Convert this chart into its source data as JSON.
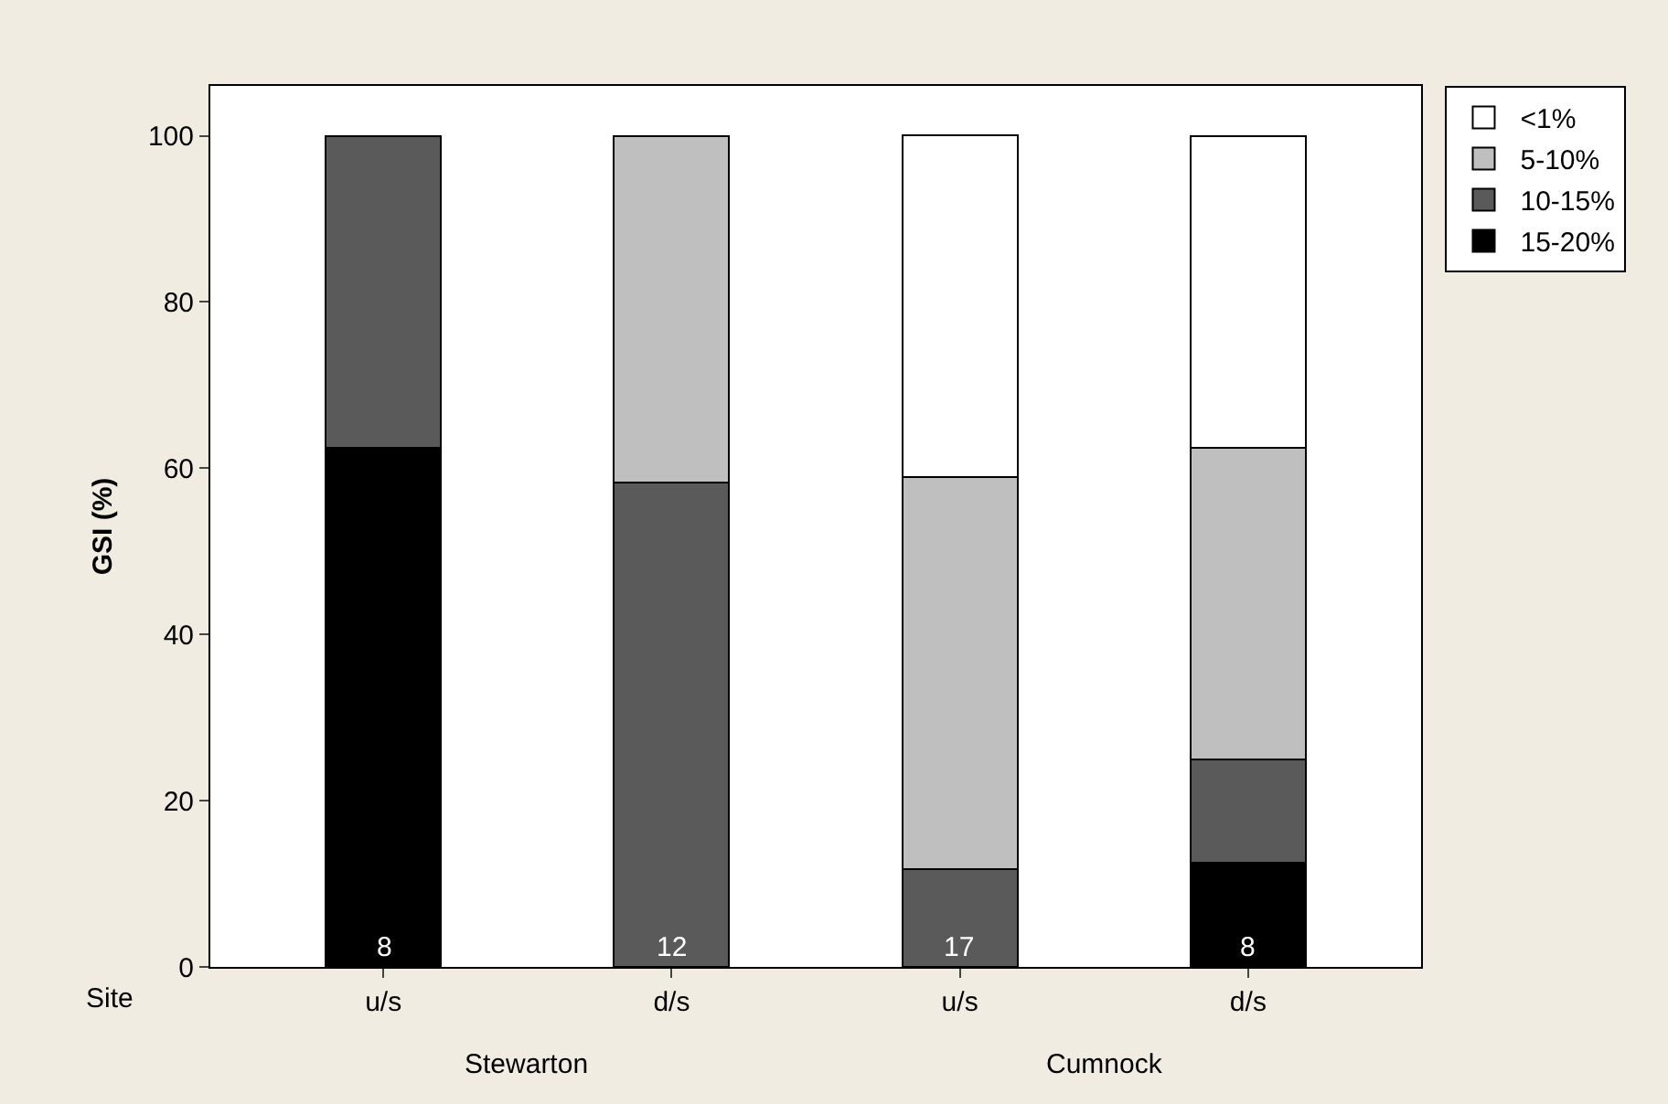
{
  "chart_data": {
    "type": "bar",
    "stacked": true,
    "ylabel": "GSI (%)",
    "xlabel": "Site",
    "categories": [
      "u/s",
      "d/s",
      "u/s",
      "d/s"
    ],
    "series": [
      {
        "name": "15-20%",
        "color": "#000000",
        "values": [
          62.5,
          null,
          null,
          12.5
        ]
      },
      {
        "name": "10-15%",
        "color": "#5a5a5a",
        "values": [
          37.5,
          58.3,
          11.8,
          12.5
        ]
      },
      {
        "name": "5-10%",
        "color": "#bfbfbf",
        "values": [
          null,
          41.7,
          47.1,
          37.5
        ]
      },
      {
        "name": "<1%",
        "color": "#ffffff",
        "values": [
          null,
          null,
          41.2,
          37.5
        ]
      }
    ],
    "ylim": [
      0,
      106
    ],
    "yticks": [
      0,
      20,
      40,
      60,
      80,
      100
    ],
    "legend": "top right",
    "annotations": [
      "8",
      "12",
      "17",
      "8",
      "Stewarton",
      "Cumnock"
    ]
  }
}
